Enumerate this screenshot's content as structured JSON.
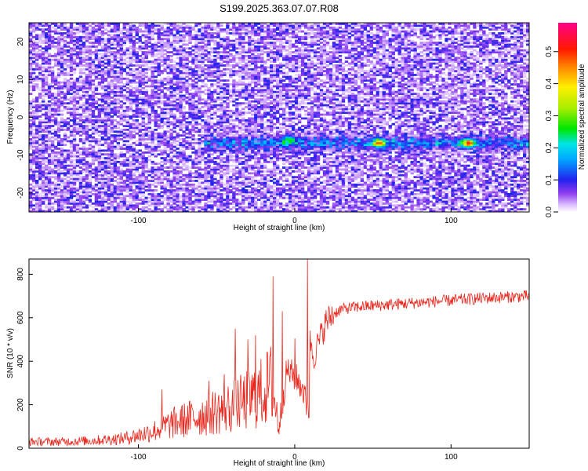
{
  "figure": {
    "title": "S199.2025.363.07.07.R08"
  },
  "chart_data": [
    {
      "type": "heatmap",
      "title": "S199.2025.363.07.07.R08",
      "xlabel": "Height of straight line (km)",
      "ylabel": "Frequency (Hz)",
      "xlim": [
        -170,
        150
      ],
      "ylim": [
        -25,
        25
      ],
      "x_ticks": [
        -100,
        0,
        100
      ],
      "y_ticks": [
        -20,
        -10,
        0,
        10,
        20
      ],
      "colorbar": {
        "label": "Normalized spectral amplitude",
        "range": [
          0,
          0.59
        ],
        "ticks": [
          0.0,
          0.1,
          0.2,
          0.3,
          0.4,
          0.5
        ],
        "colormap": "white-purple-blue-cyan-green-yellow-orange-red-magenta"
      },
      "features": [
        {
          "name": "signal band",
          "frequency": -7,
          "x_range": [
            -60,
            150
          ],
          "typical_amplitude": 0.12
        },
        {
          "name": "peak",
          "x": 53,
          "frequency": -7,
          "amplitude": 0.35
        },
        {
          "name": "peak",
          "x": 110,
          "frequency": -7,
          "amplitude": 0.37
        },
        {
          "name": "peak",
          "x": -5,
          "frequency": -6,
          "amplitude": 0.2
        }
      ],
      "background_amplitude": [
        0.0,
        0.08
      ],
      "colors": {
        "low": "#ffffff",
        "purple": "#7b2ff7",
        "blue": "#1e2cf0",
        "cyan": "#00e5ff",
        "green": "#00e600",
        "yellow": "#ffee00",
        "orange": "#ff8c00",
        "red": "#ff0000",
        "magenta": "#ff00aa"
      }
    },
    {
      "type": "line",
      "xlabel": "Height of straight line (km)",
      "ylabel": "SNR (10 * v/v)",
      "xlim": [
        -170,
        150
      ],
      "ylim": [
        0,
        870
      ],
      "x_ticks": [
        -100,
        0,
        100
      ],
      "y_ticks": [
        0,
        200,
        400,
        600,
        800
      ],
      "color": "#e8281e",
      "x": [
        -170,
        -150,
        -130,
        -110,
        -100,
        -90,
        -80,
        -70,
        -60,
        -50,
        -40,
        -30,
        -20,
        -15,
        -10,
        -5,
        0,
        5,
        8,
        10,
        12,
        15,
        20,
        25,
        30,
        40,
        50,
        60,
        80,
        100,
        120,
        150
      ],
      "values": [
        30,
        30,
        35,
        45,
        60,
        80,
        110,
        130,
        150,
        170,
        190,
        220,
        260,
        300,
        100,
        360,
        330,
        280,
        180,
        500,
        420,
        480,
        580,
        620,
        640,
        650,
        655,
        660,
        670,
        680,
        690,
        700
      ],
      "spikes": [
        {
          "x": -85,
          "y": 270
        },
        {
          "x": -55,
          "y": 310
        },
        {
          "x": -45,
          "y": 340
        },
        {
          "x": -38,
          "y": 550
        },
        {
          "x": -30,
          "y": 500
        },
        {
          "x": -25,
          "y": 520
        },
        {
          "x": -14,
          "y": 790
        },
        {
          "x": -8,
          "y": 630
        },
        {
          "x": 0,
          "y": 505
        },
        {
          "x": 8,
          "y": 870
        },
        {
          "x": 9,
          "y": 140
        }
      ]
    }
  ]
}
